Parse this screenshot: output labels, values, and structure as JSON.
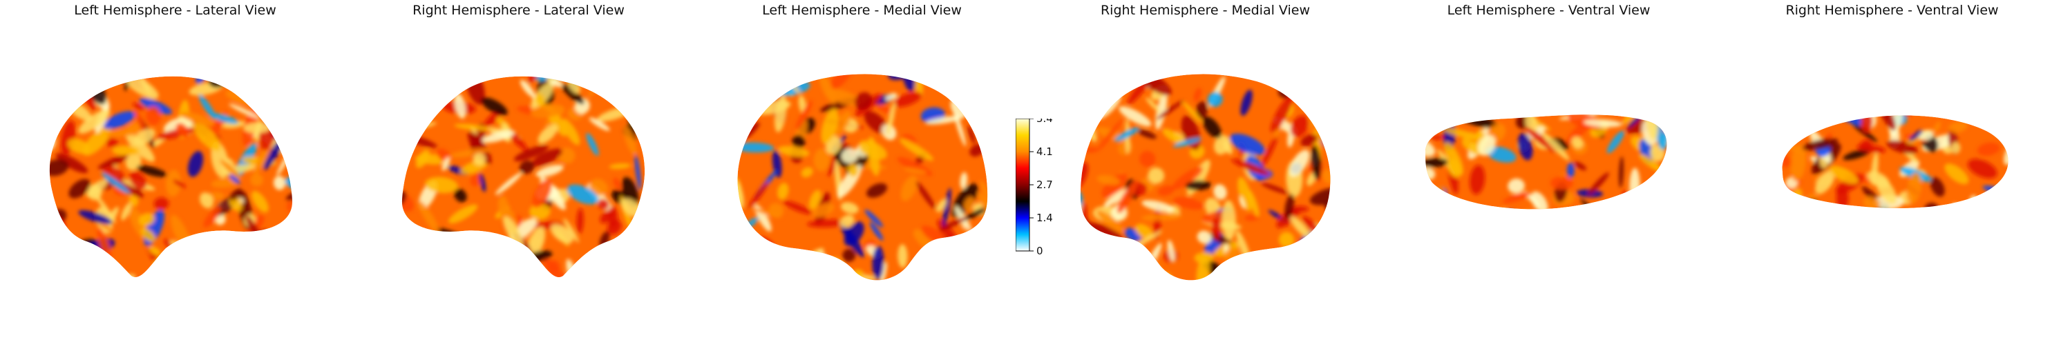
{
  "panels": [
    {
      "title": "Left Hemisphere - Lateral View",
      "view": "lateral-left"
    },
    {
      "title": "Right Hemisphere - Lateral View",
      "view": "lateral-right"
    },
    {
      "title": "Left Hemisphere - Medial View",
      "view": "medial-left"
    },
    {
      "title": "Right Hemisphere - Medial View",
      "view": "medial-right"
    },
    {
      "title": "Left Hemisphere - Ventral View",
      "view": "ventral-left"
    },
    {
      "title": "Right Hemisphere - Ventral View",
      "view": "ventral-right"
    }
  ],
  "colorbar": {
    "ticks": [
      "5.4",
      "4.1",
      "2.7",
      "1.4",
      "0"
    ],
    "min": 0,
    "max": 5.4,
    "colormap": [
      "#ffffff",
      "#00bfff",
      "#0000ff",
      "#000000",
      "#8b0000",
      "#ff0000",
      "#ff8c00",
      "#ffd700",
      "#ffffe0"
    ]
  }
}
